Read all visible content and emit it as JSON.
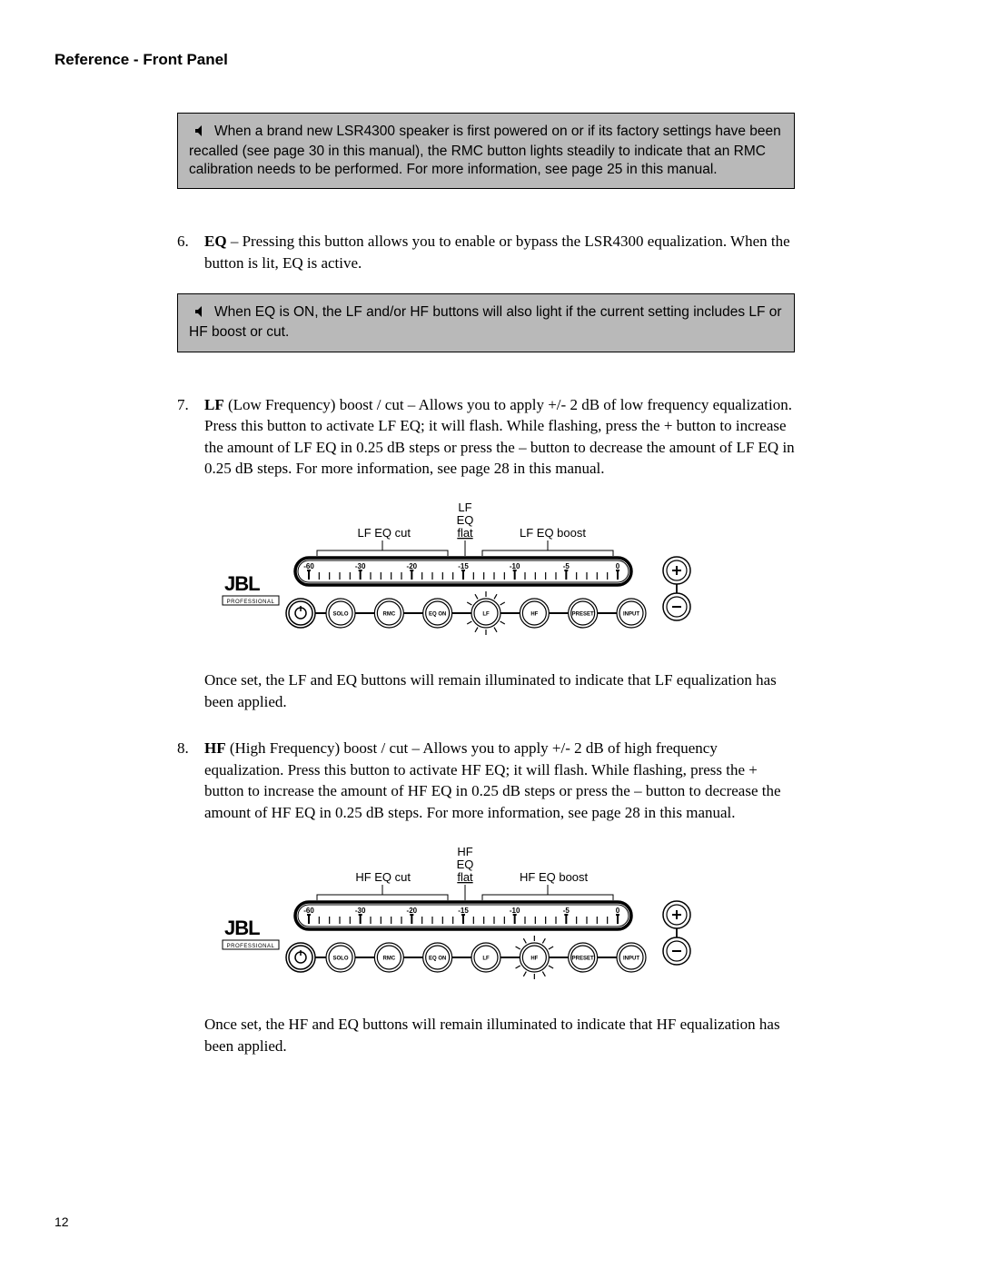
{
  "heading": "Reference - Front Panel",
  "note1_text": "When a brand new LSR4300 speaker is first powered on or if its factory settings have been recalled (see page 30 in this manual), the RMC button lights steadily to indicate that an RMC calibration needs to be performed.  For more information, see page 25 in this manual.",
  "item6": {
    "num": "6.",
    "label": "EQ",
    "text": " – Pressing this button allows you to enable or bypass the LSR4300 equalization.  When the button is lit, EQ is active."
  },
  "note2_text": "When EQ is ON, the LF and/or HF buttons will also light if the current setting includes LF or HF boost or cut.",
  "item7": {
    "num": "7.",
    "label": "LF",
    "after_label": " (Low Frequency) boost / cut – Allows you to apply +/- 2 dB of low frequency equalization.  Press this button to activate LF EQ; it will flash. While flashing, press the + button to increase the amount of LF EQ in 0.25 dB steps or press the – button to decrease the amount of LF EQ in 0.25 dB steps.  For more information, see page 28 in this manual."
  },
  "after7": "Once set, the LF and EQ buttons will remain illuminated to indicate that LF equalization has been applied.",
  "item8": {
    "num": "8.",
    "label": "HF",
    "after_label": " (High Frequency) boost / cut – Allows you to apply +/- 2 dB of high frequency equalization.  Press this button to activate HF EQ; it will flash. While flashing, press the + button to increase the amount of HF EQ in 0.25 dB steps or press the – button to decrease the amount of HF EQ in 0.25 dB steps.  For more information, see page 28 in this manual."
  },
  "after8": "Once set, the HF and EQ buttons will remain illuminated to indicate that HF equalization has been applied.",
  "page_number": "12",
  "diagram_lf": {
    "eq_line1": "LF",
    "eq_line2": "EQ",
    "eq_line3": "flat",
    "cut_label": "LF EQ cut",
    "boost_label": "LF EQ boost",
    "active_button": "lf"
  },
  "diagram_hf": {
    "eq_line1": "HF",
    "eq_line2": "EQ",
    "eq_line3": "flat",
    "cut_label": "HF EQ cut",
    "boost_label": "HF EQ boost",
    "active_button": "hf"
  },
  "panel": {
    "logo": "JBL",
    "sublogo": "PROFESSIONAL",
    "scale_labels": [
      "-60",
      "-30",
      "-20",
      "-15",
      "-10",
      "-5",
      "0"
    ],
    "buttons": [
      "SOLO",
      "RMC",
      "EQ ON",
      "LF",
      "HF",
      "PRESET",
      "INPUT"
    ]
  },
  "colors": {
    "bg": "#ffffff",
    "text": "#000000",
    "note_bg": "#b9b9b9",
    "stroke": "#000000"
  }
}
